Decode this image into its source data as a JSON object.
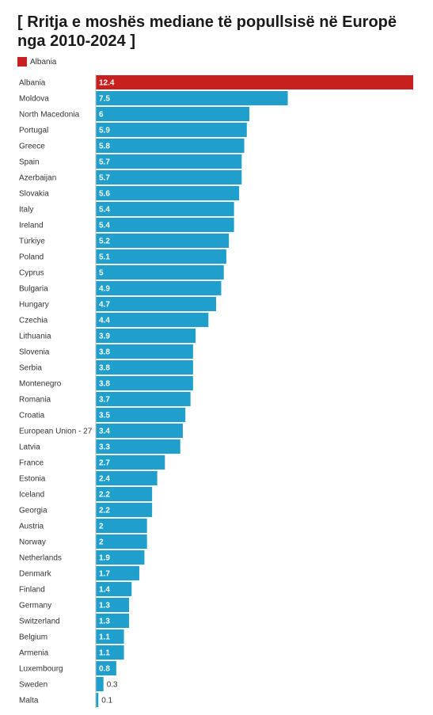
{
  "colors": {
    "highlight": "#c8201f",
    "bar": "#1f9fcb",
    "axis": "#bbbbbb"
  },
  "legend": {
    "label": "Albania"
  },
  "chart_data": {
    "type": "bar",
    "orientation": "horizontal",
    "title": "[ Rritja e moshës mediane të popullsisë në Europë nga 2010-2024 ]",
    "xlim": [
      0,
      12.4
    ],
    "grid": false,
    "legend_position": "top-left",
    "highlight_category": "Albania",
    "categories": [
      "Albania",
      "Moldova",
      "North Macedonia",
      "Portugal",
      "Greece",
      "Spain",
      "Azerbaijan",
      "Slovakia",
      "Italy",
      "Ireland",
      "Türkiye",
      "Poland",
      "Cyprus",
      "Bulgaria",
      "Hungary",
      "Czechia",
      "Lithuania",
      "Slovenia",
      "Serbia",
      "Montenegro",
      "Romania",
      "Croatia",
      "European Union - 27",
      "Latvia",
      "France",
      "Estonia",
      "Iceland",
      "Georgia",
      "Austria",
      "Norway",
      "Netherlands",
      "Denmark",
      "Finland",
      "Germany",
      "Switzerland",
      "Belgium",
      "Armenia",
      "Luxembourg",
      "Sweden",
      "Malta"
    ],
    "values": [
      12.4,
      7.5,
      6,
      5.9,
      5.8,
      5.7,
      5.7,
      5.6,
      5.4,
      5.4,
      5.2,
      5.1,
      5,
      4.9,
      4.7,
      4.4,
      3.9,
      3.8,
      3.8,
      3.8,
      3.7,
      3.5,
      3.4,
      3.3,
      2.7,
      2.4,
      2.2,
      2.2,
      2,
      2,
      1.9,
      1.7,
      1.4,
      1.3,
      1.3,
      1.1,
      1.1,
      0.8,
      0.3,
      0.1
    ]
  }
}
